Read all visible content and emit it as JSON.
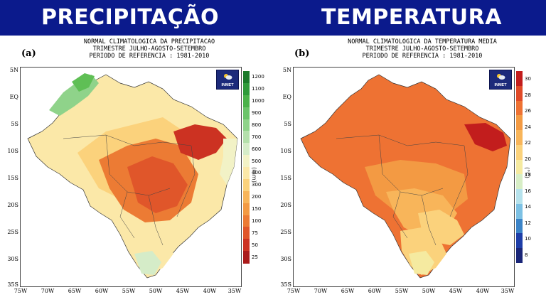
{
  "banner": {
    "left_title": "PRECIPITAÇÃO",
    "right_title": "TEMPERATURA",
    "background": "#0b1a8c"
  },
  "panels": [
    {
      "id": "a",
      "letter": "(a)",
      "header_lines": [
        "NORMAL CLIMATOLOGICA DA PRECIPITACAO",
        "TRIMESTRE JULHO-AGOSTO-SETEMBRO",
        "PERIODO DE REFERENCIA : 1981-2010"
      ],
      "logo_text": "INMET",
      "lat_labels": [
        "5N",
        "EQ",
        "5S",
        "10S",
        "15S",
        "20S",
        "25S",
        "30S",
        "35S"
      ],
      "lon_labels": [
        "75W",
        "70W",
        "65W",
        "60W",
        "55W",
        "50W",
        "45W",
        "40W",
        "35W"
      ],
      "colorbar": {
        "unit": "(mm)",
        "ticks": [
          "1200",
          "1100",
          "1000",
          "900",
          "800",
          "700",
          "600",
          "500",
          "400",
          "300",
          "200",
          "150",
          "100",
          "75",
          "50",
          "25"
        ],
        "colors": [
          "#1b7a2a",
          "#2f9a3a",
          "#4bb24a",
          "#6cc46a",
          "#8fd38a",
          "#b4e0ab",
          "#d5ecc8",
          "#f2f2c6",
          "#fbe8a8",
          "#fbd27c",
          "#f8b55a",
          "#f39a43",
          "#ec7b34",
          "#e0562a",
          "#cc3222",
          "#aa1a1a"
        ]
      },
      "map_fill": {
        "north_west": "#8fd38a",
        "north_wet": "#5fbf55",
        "north": "#fbe8a8",
        "amazon": "#fbd27c",
        "center": "#ec7b34",
        "center_core": "#e0562a",
        "north_east_core": "#cc3222",
        "east_coast": "#f2f2c6",
        "south": "#fbe8a8",
        "far_south": "#d5ecc8"
      }
    },
    {
      "id": "b",
      "letter": "(b)",
      "header_lines": [
        "NORMAL CLIMATOLOGICA DA TEMPERATURA MEDIA",
        "TRIMESTRE JULHO-AGOSTO-SETEMBRO",
        "PERIODO DE REFERENCIA : 1981-2010"
      ],
      "logo_text": "INMET",
      "lat_labels": [
        "5N",
        "EQ",
        "5S",
        "10S",
        "15S",
        "20S",
        "25S",
        "30S",
        "35S"
      ],
      "lon_labels": [
        "75W",
        "70W",
        "65W",
        "60W",
        "55W",
        "50W",
        "45W",
        "40W",
        "35W"
      ],
      "colorbar": {
        "unit": "(°C)",
        "ticks": [
          "30",
          "28",
          "26",
          "24",
          "22",
          "20",
          "18",
          "16",
          "14",
          "12",
          "10",
          "8"
        ],
        "colors": [
          "#c21d1d",
          "#e04a28",
          "#ee7233",
          "#f39a43",
          "#f8b55a",
          "#fbd27c",
          "#f5eaa0",
          "#d7eec6",
          "#b6e2ec",
          "#7dc1e4",
          "#3c84c8",
          "#1e3ea8",
          "#1a2678"
        ]
      },
      "map_fill": {
        "north": "#ee7233",
        "amazon": "#ee7233",
        "north_east_core": "#c21d1d",
        "center": "#f39a43",
        "center_south": "#f8b55a",
        "south_east": "#fbd27c",
        "south": "#fbd27c",
        "far_south": "#f5eaa0"
      }
    }
  ]
}
